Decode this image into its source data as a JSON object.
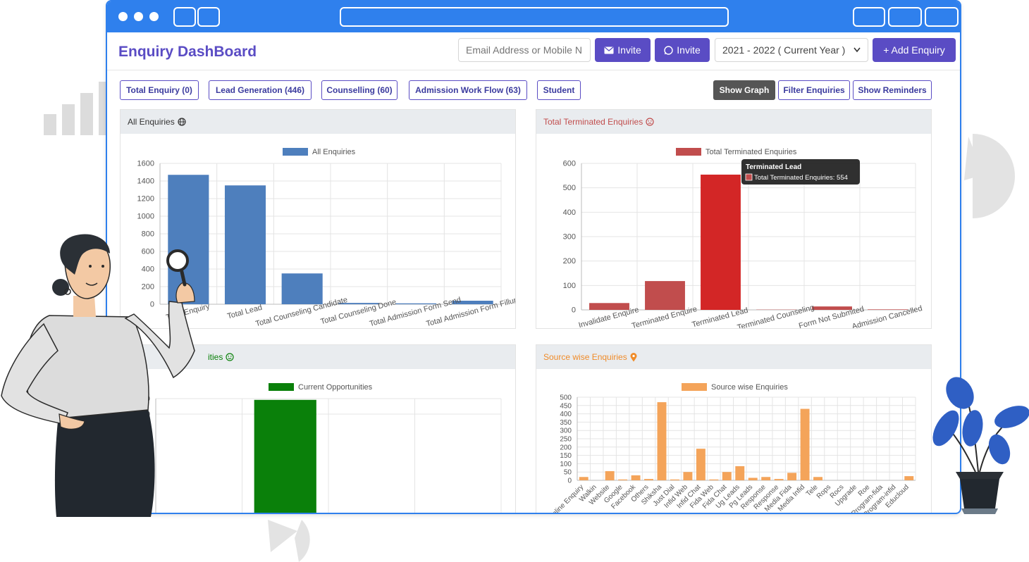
{
  "window": {
    "title": ""
  },
  "header": {
    "title": "Enquiry DashBoard",
    "email_placeholder": "Email Address or Mobile N",
    "invite_email_label": "Invite",
    "invite_whatsapp_label": "Invite",
    "year_selected": "2021 - 2022 ( Current Year )",
    "add_enquiry_label": "+ Add Enquiry"
  },
  "tabs": [
    {
      "label": "Total Enquiry (0)"
    },
    {
      "label": "Lead Generation (446)"
    },
    {
      "label": "Counselling (60)"
    },
    {
      "label": "Admission Work Flow (63)"
    },
    {
      "label": "Student"
    }
  ],
  "actions": [
    {
      "label": "Show Graph"
    },
    {
      "label": "Filter Enquiries"
    },
    {
      "label": "Show Reminders"
    }
  ],
  "cards": {
    "all": {
      "title": "All Enquiries"
    },
    "terminated": {
      "title": "Total Terminated Enquiries"
    },
    "current": {
      "title": "ities"
    },
    "source": {
      "title": "Source wise Enquiries"
    }
  },
  "tooltip": {
    "title": "Terminated Lead",
    "body": "Total Terminated Enquiries: 554"
  },
  "colors": {
    "brand": "#5a4cc4",
    "window": "#2f80ed",
    "all": "#4e7fbd",
    "terminated": "#c14d4d",
    "terminated_hover": "#d32626",
    "current": "#0a800a",
    "source": "#f4a45a"
  },
  "chart_data": [
    {
      "type": "bar",
      "title": "",
      "series": [
        {
          "name": "All Enquiries",
          "values": [
            1470,
            1350,
            350,
            15,
            10,
            40
          ]
        }
      ],
      "categories": [
        "Total Enquiry",
        "Total Lead",
        "Total Counseling Candidate",
        "Total Counseling Done",
        "Total Admission Form Send",
        "Total Admission Form Fillup"
      ],
      "ylim": [
        0,
        1600
      ],
      "yticks": [
        0,
        200,
        400,
        600,
        800,
        1000,
        1200,
        1400,
        1600
      ],
      "grid": true,
      "legend": "top"
    },
    {
      "type": "bar",
      "title": "",
      "series": [
        {
          "name": "Total Terminated Enquiries",
          "values": [
            28,
            118,
            554,
            1,
            14,
            2
          ]
        }
      ],
      "categories": [
        "Invalidate Enquire",
        "Terminated Enquire",
        "Terminated Lead",
        "Terminated Counseling",
        "Form Not Submited",
        "Admission Cancelled"
      ],
      "ylim": [
        0,
        600
      ],
      "yticks": [
        0,
        100,
        200,
        300,
        400,
        500,
        600
      ],
      "grid": true,
      "legend": "top"
    },
    {
      "type": "bar",
      "title": "",
      "series": [
        {
          "name": "Current Opportunities",
          "values": [
            0,
            446,
            20,
            22
          ]
        }
      ],
      "categories": [
        "",
        "",
        "",
        ""
      ],
      "ylim": [
        0,
        450
      ],
      "yticks": [
        400,
        450
      ],
      "grid": true,
      "legend": "top"
    },
    {
      "type": "bar",
      "title": "",
      "series": [
        {
          "name": "Source wise Enquiries",
          "values": [
            20,
            0,
            55,
            5,
            30,
            8,
            470,
            5,
            50,
            190,
            5,
            50,
            85,
            15,
            20,
            8,
            45,
            430,
            20,
            0,
            0,
            0,
            0,
            0,
            0,
            25
          ]
        }
      ],
      "categories": [
        "Online Enquiry",
        "Walkin",
        "Website",
        "Google",
        "Facebook",
        "Others",
        "Shiksha",
        "Just Dial",
        "Infid Web",
        "Infid Chat",
        "Fida Web",
        "Fida Chat",
        "Ug Leads",
        "Pg Leads",
        "Response",
        "Response",
        "Media Fida",
        "Media Infid",
        "Tele",
        "Rops",
        "Rocs",
        "Upgrade",
        "Roe",
        "Program-fida",
        "Program-infid",
        "Educloud"
      ],
      "ylim": [
        0,
        500
      ],
      "yticks": [
        0,
        50,
        100,
        150,
        200,
        250,
        300,
        350,
        400,
        450,
        500
      ],
      "grid": true,
      "legend": "top"
    }
  ]
}
